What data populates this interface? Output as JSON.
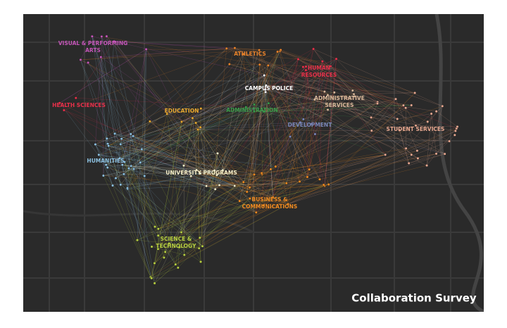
{
  "title": "Collaboration Survey",
  "groups": [
    {
      "label_lines": [
        "VISUAL & PERFORMING",
        "ARTS"
      ],
      "color": "#c455b8"
    },
    {
      "label_lines": [
        "ATHLETICS"
      ],
      "color": "#e8822a"
    },
    {
      "label_lines": [
        "HUMAN",
        "RESOURCES"
      ],
      "color": "#e8304a"
    },
    {
      "label_lines": [
        "CAMPUS POLICE"
      ],
      "color": "#ffffff"
    },
    {
      "label_lines": [
        "ADMINISTRATIVE",
        "SERVICES"
      ],
      "color": "#d9b89a"
    },
    {
      "label_lines": [
        "HEALTH SCIENCES"
      ],
      "color": "#e8304a"
    },
    {
      "label_lines": [
        "EDUCATION"
      ],
      "color": "#e8a830"
    },
    {
      "label_lines": [
        "ADMINISTRATION"
      ],
      "color": "#3a9a4a"
    },
    {
      "label_lines": [
        "DEVELOPMENT"
      ],
      "color": "#7a86b8"
    },
    {
      "label_lines": [
        "STUDENT SERVICES"
      ],
      "color": "#e8a890"
    },
    {
      "label_lines": [
        "HUMANITIES"
      ],
      "color": "#8cc0e0"
    },
    {
      "label_lines": [
        "UNIVERSITY PROGRAMS"
      ],
      "color": "#f3ecc8"
    },
    {
      "label_lines": [
        "BUSINESS &",
        "COMMUNICATIONS"
      ],
      "color": "#f08a20"
    },
    {
      "label_lines": [
        "SCIENCE &",
        "TECHNOLOGY"
      ],
      "color": "#b8d040"
    }
  ]
}
